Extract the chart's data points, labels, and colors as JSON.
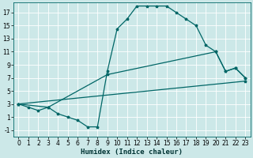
{
  "xlabel": "Humidex (Indice chaleur)",
  "ylabel": "",
  "bg_color": "#cce8e8",
  "grid_color": "#ffffff",
  "line_color": "#006666",
  "xlim": [
    -0.5,
    23.5
  ],
  "ylim": [
    -2.0,
    18.5
  ],
  "xticks": [
    0,
    1,
    2,
    3,
    4,
    5,
    6,
    7,
    8,
    9,
    10,
    11,
    12,
    13,
    14,
    15,
    16,
    17,
    18,
    19,
    20,
    21,
    22,
    23
  ],
  "yticks": [
    -1,
    1,
    3,
    5,
    7,
    9,
    11,
    13,
    15,
    17
  ],
  "line1_x": [
    0,
    1,
    2,
    3,
    4,
    5,
    6,
    7,
    8,
    9,
    10,
    11,
    12,
    13,
    14,
    15,
    16,
    17,
    18,
    19,
    20,
    21,
    22,
    23
  ],
  "line1_y": [
    3,
    2.5,
    2,
    2.5,
    1.5,
    1,
    0.5,
    -0.5,
    -0.5,
    8,
    14.5,
    16,
    18,
    18,
    18,
    18,
    17,
    16,
    15,
    12,
    11,
    8,
    8.5,
    7
  ],
  "line2_x": [
    0,
    3,
    9,
    20,
    21,
    22,
    23
  ],
  "line2_y": [
    3,
    2.5,
    7.5,
    11,
    8,
    8.5,
    7
  ],
  "line3_x": [
    0,
    23
  ],
  "line3_y": [
    3,
    6.5
  ],
  "font_size_tick": 5.5,
  "font_size_xlabel": 6.5,
  "lw": 0.9,
  "marker_size": 2.5
}
